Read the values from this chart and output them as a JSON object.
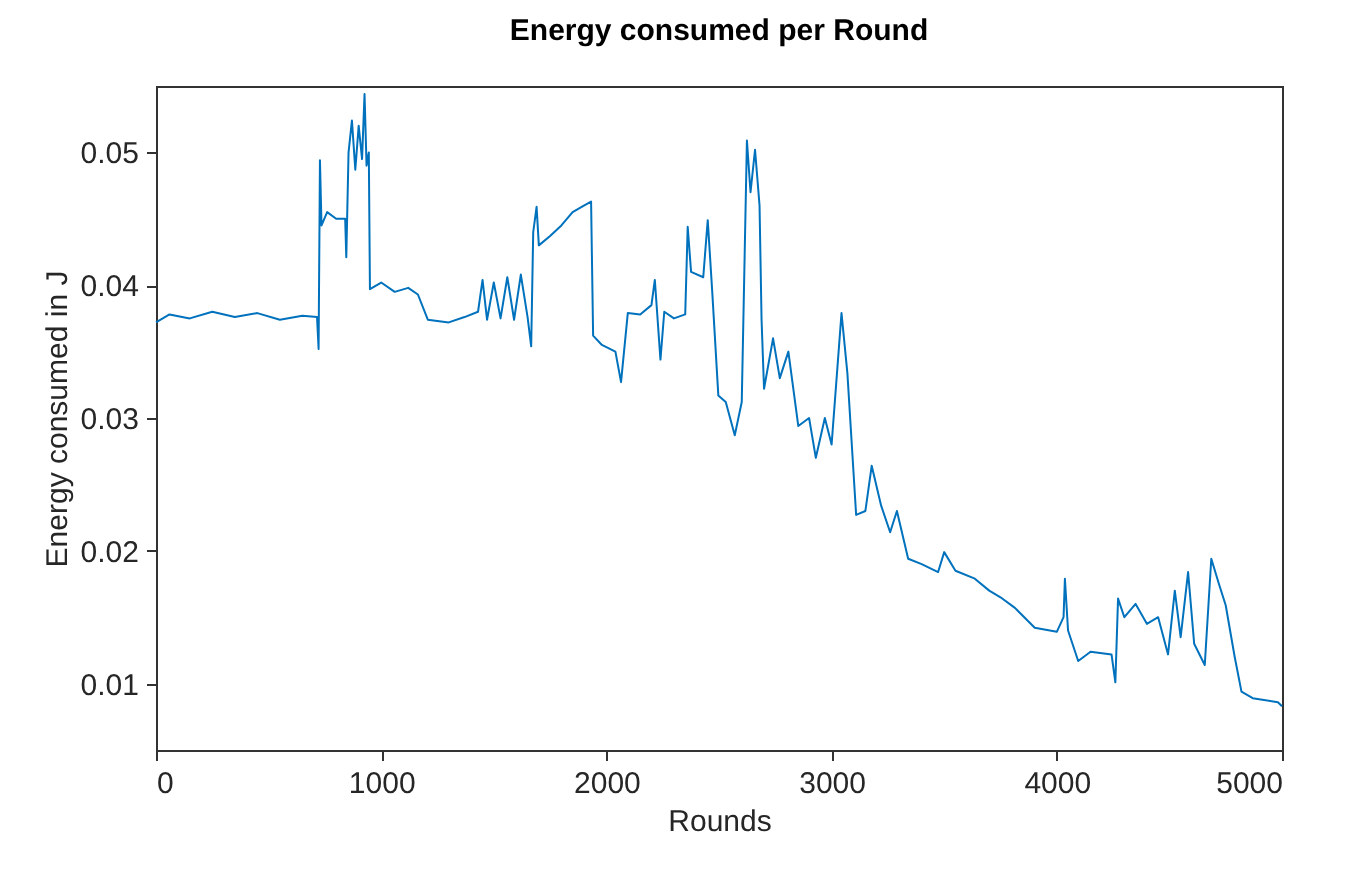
{
  "chart_data": {
    "type": "line",
    "title": "Energy consumed per Round",
    "xlabel": "Rounds",
    "ylabel": "Energy consumed in J",
    "xlim": [
      0,
      5000
    ],
    "xticks": [
      0,
      1000,
      2000,
      3000,
      4000,
      5000
    ],
    "ylim": [
      0.005,
      0.055
    ],
    "yticks": [
      0.01,
      0.02,
      0.03,
      0.04,
      0.05
    ],
    "grid": false,
    "marker": "none",
    "line_style": "solid",
    "series": [
      {
        "color": "#0072bd",
        "x": [
          0,
          60,
          150,
          250,
          350,
          450,
          550,
          650,
          715,
          722,
          728,
          735,
          760,
          800,
          840,
          845,
          855,
          870,
          885,
          900,
          915,
          926,
          935,
          945,
          950,
          1000,
          1060,
          1120,
          1163,
          1207,
          1300,
          1370,
          1430,
          1450,
          1470,
          1500,
          1530,
          1560,
          1590,
          1620,
          1650,
          1666,
          1675,
          1690,
          1700,
          1750,
          1800,
          1850,
          1900,
          1932,
          1941,
          1980,
          2040,
          2065,
          2095,
          2150,
          2200,
          2215,
          2240,
          2257,
          2300,
          2350,
          2361,
          2376,
          2430,
          2450,
          2470,
          2497,
          2530,
          2570,
          2601,
          2624,
          2640,
          2660,
          2680,
          2689,
          2700,
          2740,
          2770,
          2808,
          2852,
          2900,
          2930,
          2970,
          3000,
          3044,
          3070,
          3109,
          3150,
          3178,
          3220,
          3260,
          3290,
          3340,
          3400,
          3473,
          3500,
          3550,
          3636,
          3700,
          3750,
          3814,
          3902,
          4000,
          4030,
          4036,
          4050,
          4095,
          4150,
          4243,
          4260,
          4272,
          4300,
          4350,
          4400,
          4450,
          4494,
          4524,
          4550,
          4583,
          4610,
          4657,
          4686,
          4720,
          4750,
          4790,
          4820,
          4870,
          4982,
          5000
        ],
        "values": [
          0.0372,
          0.0378,
          0.0375,
          0.038,
          0.0376,
          0.0379,
          0.0374,
          0.0377,
          0.0376,
          0.0352,
          0.0494,
          0.0445,
          0.0455,
          0.045,
          0.045,
          0.0421,
          0.05,
          0.0524,
          0.0487,
          0.052,
          0.0495,
          0.0544,
          0.049,
          0.05,
          0.0397,
          0.0402,
          0.0395,
          0.0398,
          0.0393,
          0.0374,
          0.0372,
          0.0376,
          0.038,
          0.0404,
          0.0374,
          0.0402,
          0.0375,
          0.0406,
          0.0374,
          0.0408,
          0.0376,
          0.0354,
          0.044,
          0.0459,
          0.043,
          0.0437,
          0.0445,
          0.0455,
          0.046,
          0.0463,
          0.0362,
          0.0355,
          0.035,
          0.0327,
          0.0379,
          0.0378,
          0.0385,
          0.0404,
          0.0344,
          0.038,
          0.0375,
          0.0378,
          0.0444,
          0.041,
          0.0406,
          0.0449,
          0.0395,
          0.0317,
          0.0312,
          0.0287,
          0.0312,
          0.0509,
          0.047,
          0.0502,
          0.046,
          0.0374,
          0.0322,
          0.036,
          0.033,
          0.035,
          0.0294,
          0.03,
          0.027,
          0.03,
          0.028,
          0.0379,
          0.0334,
          0.0227,
          0.023,
          0.0264,
          0.0234,
          0.0214,
          0.023,
          0.0194,
          0.019,
          0.0184,
          0.0199,
          0.0185,
          0.0179,
          0.017,
          0.0165,
          0.0157,
          0.0142,
          0.0139,
          0.015,
          0.0179,
          0.014,
          0.0117,
          0.0124,
          0.0122,
          0.0101,
          0.0164,
          0.015,
          0.016,
          0.0145,
          0.015,
          0.0122,
          0.017,
          0.0135,
          0.0184,
          0.013,
          0.0114,
          0.0194,
          0.0175,
          0.0159,
          0.012,
          0.0094,
          0.0089,
          0.0086,
          0.0083
        ]
      }
    ]
  }
}
